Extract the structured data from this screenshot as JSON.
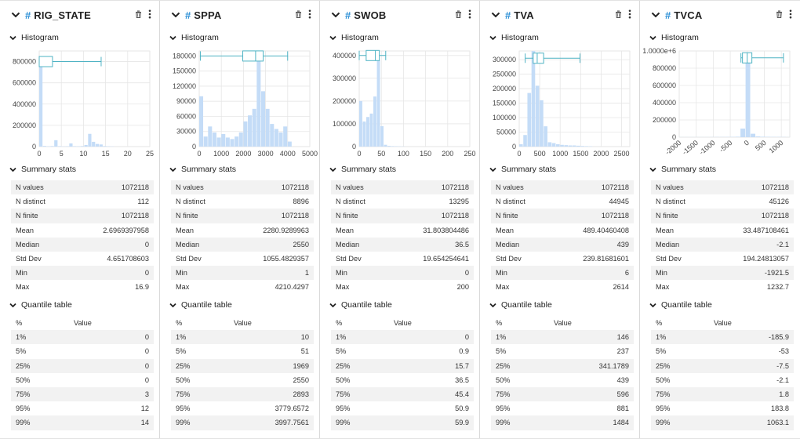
{
  "sections": {
    "histogram": "Histogram",
    "summary": "Summary stats",
    "quantile": "Quantile table"
  },
  "quantile_header": {
    "pct": "%",
    "value": "Value"
  },
  "colors": {
    "accent": "#2b8fd6",
    "bar": "#c4dcf7",
    "box": "#4fb3c4"
  },
  "columns": [
    {
      "name": "RIG_STATE",
      "summary": [
        [
          "N values",
          "1072118"
        ],
        [
          "N distinct",
          "112"
        ],
        [
          "N finite",
          "1072118"
        ],
        [
          "Mean",
          "2.6969397958"
        ],
        [
          "Median",
          "0"
        ],
        [
          "Std Dev",
          "4.651708603"
        ],
        [
          "Min",
          "0"
        ],
        [
          "Max",
          "16.9"
        ]
      ],
      "quantiles": [
        [
          "1%",
          "0"
        ],
        [
          "5%",
          "0"
        ],
        [
          "25%",
          "0"
        ],
        [
          "50%",
          "0"
        ],
        [
          "75%",
          "3"
        ],
        [
          "95%",
          "12"
        ],
        [
          "99%",
          "14"
        ]
      ],
      "chart_data": {
        "type": "bar",
        "xlim": [
          0,
          25
        ],
        "ylim": [
          0,
          900000
        ],
        "x_ticks": [
          "0",
          "5",
          "10",
          "15",
          "20",
          "25"
        ],
        "y_ticks": [
          "0",
          "200000",
          "400000",
          "600000",
          "800000"
        ],
        "x_tick_values": [
          0,
          5,
          10,
          15,
          20,
          25
        ],
        "y_tick_values": [
          0,
          200000,
          400000,
          600000,
          800000
        ],
        "bins": [
          [
            0,
            0.85,
            820000
          ],
          [
            0.85,
            1.7,
            6000
          ],
          [
            1.7,
            2.55,
            3000
          ],
          [
            2.55,
            3.4,
            5000
          ],
          [
            3.4,
            4.25,
            60000
          ],
          [
            4.25,
            5.1,
            4000
          ],
          [
            5.1,
            5.95,
            2000
          ],
          [
            5.95,
            6.8,
            3000
          ],
          [
            6.8,
            7.65,
            30000
          ],
          [
            7.65,
            8.5,
            4000
          ],
          [
            8.5,
            9.35,
            3000
          ],
          [
            9.35,
            10.2,
            5000
          ],
          [
            10.2,
            11.05,
            15000
          ],
          [
            11.05,
            11.9,
            120000
          ],
          [
            11.9,
            12.75,
            45000
          ],
          [
            12.75,
            13.6,
            25000
          ],
          [
            13.6,
            14.45,
            20000
          ],
          [
            14.45,
            15.3,
            5000
          ],
          [
            15.3,
            16.15,
            3000
          ],
          [
            16.15,
            17,
            2000
          ]
        ],
        "box": {
          "min": 0,
          "q1": 0,
          "median": 0,
          "q3": 3,
          "max": 14,
          "y": 800000
        }
      }
    },
    {
      "name": "SPPA",
      "summary": [
        [
          "N values",
          "1072118"
        ],
        [
          "N distinct",
          "8896"
        ],
        [
          "N finite",
          "1072118"
        ],
        [
          "Mean",
          "2280.9289963"
        ],
        [
          "Median",
          "2550"
        ],
        [
          "Std Dev",
          "1055.4829357"
        ],
        [
          "Min",
          "1"
        ],
        [
          "Max",
          "4210.4297"
        ]
      ],
      "quantiles": [
        [
          "1%",
          "10"
        ],
        [
          "5%",
          "51"
        ],
        [
          "25%",
          "1969"
        ],
        [
          "50%",
          "2550"
        ],
        [
          "75%",
          "2893"
        ],
        [
          "95%",
          "3779.6572"
        ],
        [
          "99%",
          "3997.7561"
        ]
      ],
      "chart_data": {
        "type": "bar",
        "xlim": [
          0,
          5000
        ],
        "ylim": [
          0,
          190000
        ],
        "x_ticks": [
          "0",
          "1000",
          "2000",
          "3000",
          "4000",
          "5000"
        ],
        "y_ticks": [
          "0",
          "30000",
          "60000",
          "90000",
          "120000",
          "150000",
          "180000"
        ],
        "x_tick_values": [
          0,
          1000,
          2000,
          3000,
          4000,
          5000
        ],
        "y_tick_values": [
          0,
          30000,
          60000,
          90000,
          120000,
          150000,
          180000
        ],
        "bins": [
          [
            0,
            200,
            100000
          ],
          [
            200,
            400,
            20000
          ],
          [
            400,
            600,
            40000
          ],
          [
            600,
            800,
            28000
          ],
          [
            800,
            1000,
            18000
          ],
          [
            1000,
            1200,
            25000
          ],
          [
            1200,
            1400,
            18000
          ],
          [
            1400,
            1600,
            15000
          ],
          [
            1600,
            1800,
            20000
          ],
          [
            1800,
            2000,
            28000
          ],
          [
            2000,
            2200,
            50000
          ],
          [
            2200,
            2400,
            62000
          ],
          [
            2400,
            2600,
            75000
          ],
          [
            2600,
            2800,
            190000
          ],
          [
            2800,
            3000,
            110000
          ],
          [
            3000,
            3200,
            75000
          ],
          [
            3200,
            3400,
            45000
          ],
          [
            3400,
            3600,
            35000
          ],
          [
            3600,
            3800,
            28000
          ],
          [
            3800,
            4000,
            40000
          ],
          [
            4000,
            4200,
            10000
          ]
        ],
        "box": {
          "min": 51,
          "q1": 1969,
          "median": 2550,
          "q3": 2893,
          "max": 3998,
          "y": 180000
        }
      }
    },
    {
      "name": "SWOB",
      "summary": [
        [
          "N values",
          "1072118"
        ],
        [
          "N distinct",
          "13295"
        ],
        [
          "N finite",
          "1072118"
        ],
        [
          "Mean",
          "31.803804486"
        ],
        [
          "Median",
          "36.5"
        ],
        [
          "Std Dev",
          "19.654254641"
        ],
        [
          "Min",
          "0"
        ],
        [
          "Max",
          "200"
        ]
      ],
      "quantiles": [
        [
          "1%",
          "0"
        ],
        [
          "5%",
          "0.9"
        ],
        [
          "25%",
          "15.7"
        ],
        [
          "50%",
          "36.5"
        ],
        [
          "75%",
          "45.4"
        ],
        [
          "95%",
          "50.9"
        ],
        [
          "99%",
          "59.9"
        ]
      ],
      "chart_data": {
        "type": "bar",
        "xlim": [
          0,
          250
        ],
        "ylim": [
          0,
          420000
        ],
        "x_ticks": [
          "0",
          "50",
          "100",
          "150",
          "200",
          "250"
        ],
        "y_ticks": [
          "0",
          "100000",
          "200000",
          "300000",
          "400000"
        ],
        "x_tick_values": [
          0,
          50,
          100,
          150,
          200,
          250
        ],
        "y_tick_values": [
          0,
          100000,
          200000,
          300000,
          400000
        ],
        "bins": [
          [
            0,
            8,
            200000
          ],
          [
            8,
            16,
            110000
          ],
          [
            16,
            24,
            130000
          ],
          [
            24,
            32,
            145000
          ],
          [
            32,
            40,
            220000
          ],
          [
            40,
            48,
            380000
          ],
          [
            48,
            56,
            90000
          ],
          [
            56,
            64,
            8000
          ],
          [
            64,
            72,
            3000
          ],
          [
            72,
            80,
            2000
          ],
          [
            80,
            88,
            1500
          ],
          [
            88,
            96,
            1000
          ],
          [
            96,
            104,
            800
          ]
        ],
        "box": {
          "min": 0,
          "q1": 15.7,
          "median": 36.5,
          "q3": 45.4,
          "max": 59.9,
          "y": 400000
        }
      }
    },
    {
      "name": "TVA",
      "summary": [
        [
          "N values",
          "1072118"
        ],
        [
          "N distinct",
          "44945"
        ],
        [
          "N finite",
          "1072118"
        ],
        [
          "Mean",
          "489.40460408"
        ],
        [
          "Median",
          "439"
        ],
        [
          "Std Dev",
          "239.81681601"
        ],
        [
          "Min",
          "6"
        ],
        [
          "Max",
          "2614"
        ]
      ],
      "quantiles": [
        [
          "1%",
          "146"
        ],
        [
          "5%",
          "237"
        ],
        [
          "25%",
          "341.1789"
        ],
        [
          "50%",
          "439"
        ],
        [
          "75%",
          "596"
        ],
        [
          "95%",
          "881"
        ],
        [
          "99%",
          "1484"
        ]
      ],
      "chart_data": {
        "type": "bar",
        "xlim": [
          0,
          2700
        ],
        "ylim": [
          0,
          330000
        ],
        "x_ticks": [
          "0",
          "500",
          "1000",
          "1500",
          "2000",
          "2500"
        ],
        "y_ticks": [
          "0",
          "50000",
          "100000",
          "150000",
          "200000",
          "250000",
          "300000"
        ],
        "x_tick_values": [
          0,
          500,
          1000,
          1500,
          2000,
          2500
        ],
        "y_tick_values": [
          0,
          50000,
          100000,
          150000,
          200000,
          250000,
          300000
        ],
        "bins": [
          [
            0,
            100,
            8000
          ],
          [
            100,
            200,
            40000
          ],
          [
            200,
            300,
            185000
          ],
          [
            300,
            400,
            330000
          ],
          [
            400,
            500,
            210000
          ],
          [
            500,
            600,
            160000
          ],
          [
            600,
            700,
            70000
          ],
          [
            700,
            800,
            15000
          ],
          [
            800,
            900,
            12000
          ],
          [
            900,
            1000,
            8000
          ],
          [
            1000,
            1100,
            6000
          ],
          [
            1100,
            1200,
            5000
          ],
          [
            1200,
            1300,
            4000
          ],
          [
            1300,
            1400,
            4000
          ],
          [
            1400,
            1500,
            3000
          ],
          [
            1500,
            1600,
            2000
          ],
          [
            1600,
            1700,
            1500
          ],
          [
            1700,
            1800,
            1000
          ]
        ],
        "box": {
          "min": 146,
          "q1": 341,
          "median": 439,
          "q3": 596,
          "max": 1484,
          "y": 305000
        }
      }
    },
    {
      "name": "TVCA",
      "summary": [
        [
          "N values",
          "1072118"
        ],
        [
          "N distinct",
          "45126"
        ],
        [
          "N finite",
          "1072118"
        ],
        [
          "Mean",
          "33.487108461"
        ],
        [
          "Median",
          "-2.1"
        ],
        [
          "Std Dev",
          "194.24813057"
        ],
        [
          "Min",
          "-1921.5"
        ],
        [
          "Max",
          "1232.7"
        ]
      ],
      "quantiles": [
        [
          "1%",
          "-185.9"
        ],
        [
          "5%",
          "-53"
        ],
        [
          "25%",
          "-7.5"
        ],
        [
          "50%",
          "-2.1"
        ],
        [
          "75%",
          "1.8"
        ],
        [
          "95%",
          "183.8"
        ],
        [
          "99%",
          "1063.1"
        ]
      ],
      "chart_data": {
        "type": "bar",
        "xlim": [
          -2000,
          1250
        ],
        "ylim": [
          0,
          1000000
        ],
        "x_ticks": [
          "-2000",
          "-1500",
          "-1000",
          "-500",
          "0",
          "500",
          "1000"
        ],
        "y_ticks": [
          "0",
          "200000",
          "400000",
          "600000",
          "800000",
          "1.0000e+6"
        ],
        "x_tick_values": [
          -2000,
          -1500,
          -1000,
          -500,
          0,
          500,
          1000
        ],
        "y_tick_values": [
          0,
          200000,
          400000,
          600000,
          800000,
          1000000
        ],
        "bins": [
          [
            -2000,
            -1850,
            1000
          ],
          [
            -1850,
            -1700,
            1000
          ],
          [
            -1700,
            -1550,
            1000
          ],
          [
            -1550,
            -1400,
            1000
          ],
          [
            -1400,
            -1250,
            1000
          ],
          [
            -1250,
            -1100,
            1000
          ],
          [
            -1100,
            -950,
            1500
          ],
          [
            -950,
            -800,
            2000
          ],
          [
            -800,
            -650,
            2000
          ],
          [
            -650,
            -500,
            2500
          ],
          [
            -500,
            -350,
            3000
          ],
          [
            -350,
            -200,
            5000
          ],
          [
            -200,
            -50,
            100000
          ],
          [
            -50,
            100,
            900000
          ],
          [
            100,
            250,
            40000
          ],
          [
            250,
            400,
            8000
          ],
          [
            400,
            550,
            5000
          ],
          [
            550,
            700,
            4000
          ],
          [
            700,
            850,
            3000
          ],
          [
            850,
            1000,
            3000
          ],
          [
            1000,
            1150,
            2000
          ],
          [
            1150,
            1250,
            1000
          ]
        ],
        "box": {
          "min": -185.9,
          "q1": -7.5,
          "median": -2.1,
          "q3": 1.8,
          "max": 1063.1,
          "y": 920000
        }
      }
    }
  ]
}
